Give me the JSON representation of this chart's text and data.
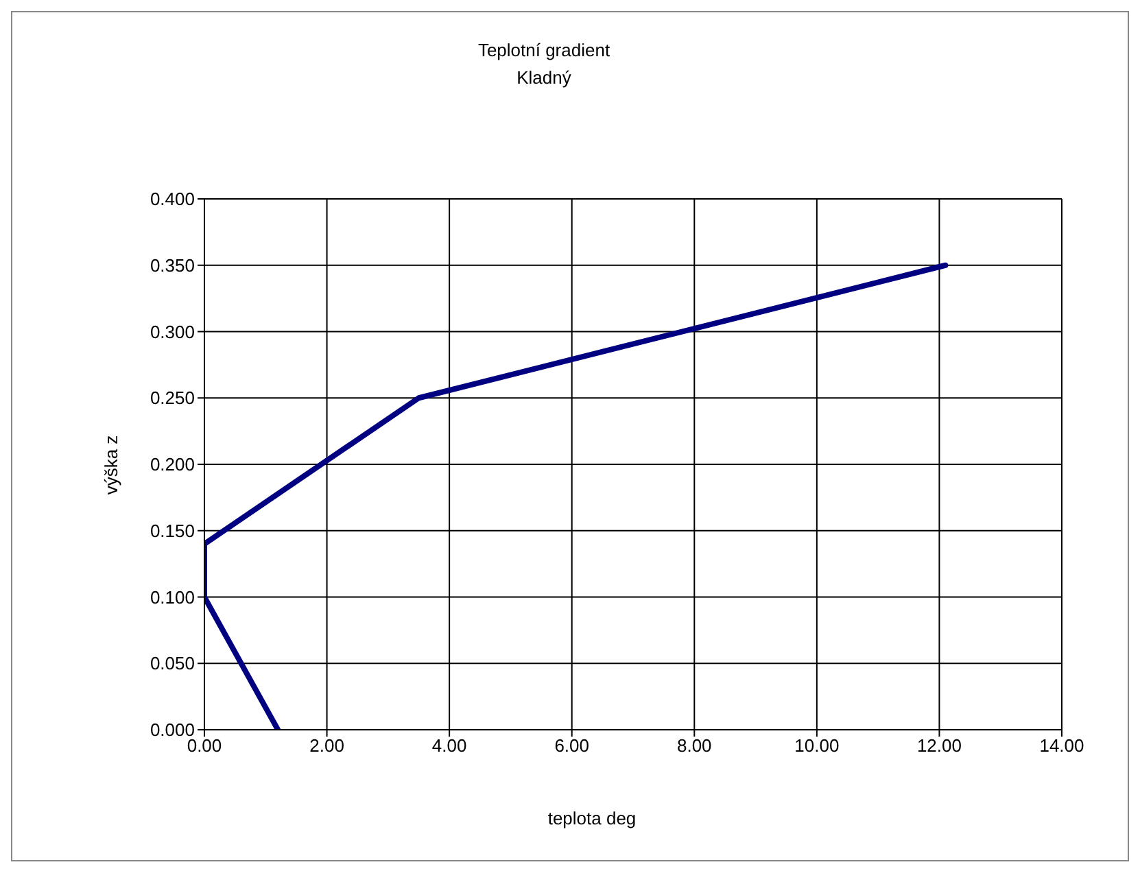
{
  "chart_data": {
    "type": "line",
    "title": "Teplotní gradient",
    "subtitle": "Kladný",
    "xlabel": "teplota deg",
    "ylabel": "výška z",
    "x": [
      1.2,
      0,
      0,
      3.5,
      12.1
    ],
    "series": [
      {
        "color": "#000080",
        "values": [
          0,
          0.1,
          0.14,
          0.25,
          0.35
        ]
      }
    ],
    "xlim": [
      0,
      14
    ],
    "xticks": [
      {
        "value": 0,
        "label": "0.00"
      },
      {
        "value": 2,
        "label": "2.00"
      },
      {
        "value": 4,
        "label": "4.00"
      },
      {
        "value": 6,
        "label": "6.00"
      },
      {
        "value": 8,
        "label": "8.00"
      },
      {
        "value": 10,
        "label": "10.00"
      },
      {
        "value": 12,
        "label": "12.00"
      },
      {
        "value": 14,
        "label": "14.00"
      }
    ],
    "ylim": [
      0,
      0.4
    ],
    "yticks": [
      {
        "value": 0,
        "label": "0.000"
      },
      {
        "value": 0.05,
        "label": "0.050"
      },
      {
        "value": 0.1,
        "label": "0.100"
      },
      {
        "value": 0.15,
        "label": "0.150"
      },
      {
        "value": 0.2,
        "label": "0.200"
      },
      {
        "value": 0.25,
        "label": "0.250"
      },
      {
        "value": 0.3,
        "label": "0.300"
      },
      {
        "value": 0.35,
        "label": "0.350"
      },
      {
        "value": 0.4,
        "label": "0.400"
      }
    ],
    "grid": true,
    "legend": false,
    "marker": "none",
    "line_style": "solid"
  }
}
